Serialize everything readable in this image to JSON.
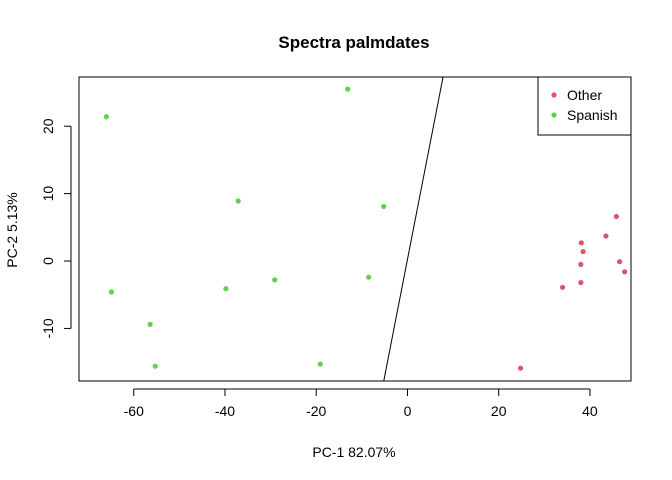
{
  "chart_data": {
    "type": "scatter",
    "title": "Spectra palmdates",
    "xlabel": "PC-1 82.07%",
    "ylabel": "PC-2  5.13%",
    "xlim": [
      -72,
      49
    ],
    "ylim": [
      -17.8,
      27.3
    ],
    "xticks": [
      -60,
      -40,
      -20,
      0,
      20,
      40
    ],
    "yticks": [
      -10,
      0,
      10,
      20
    ],
    "grid": false,
    "legend": "top-right",
    "series": [
      {
        "name": "Other",
        "color": "#df536b",
        "points": [
          [
            24.8,
            -15.9
          ],
          [
            34.0,
            -3.9
          ],
          [
            38.0,
            -3.2
          ],
          [
            38.0,
            -0.5
          ],
          [
            38.1,
            2.7
          ],
          [
            38.5,
            1.4
          ],
          [
            43.5,
            3.7
          ],
          [
            45.8,
            6.6
          ],
          [
            46.5,
            -0.1
          ],
          [
            47.6,
            -1.6
          ]
        ]
      },
      {
        "name": "Spanish",
        "color": "#61d04f",
        "points": [
          [
            -66.0,
            21.4
          ],
          [
            -64.9,
            -4.6
          ],
          [
            -56.4,
            -9.4
          ],
          [
            -55.3,
            -15.6
          ],
          [
            -39.8,
            -4.1
          ],
          [
            -37.1,
            8.9
          ],
          [
            -29.1,
            -2.8
          ],
          [
            -19.1,
            -15.3
          ],
          [
            -13.1,
            25.5
          ],
          [
            -8.5,
            -2.4
          ],
          [
            -5.2,
            8.1
          ]
        ]
      }
    ],
    "decision_line": [
      [
        -5.2,
        -17.8
      ],
      [
        7.8,
        27.3
      ]
    ]
  }
}
